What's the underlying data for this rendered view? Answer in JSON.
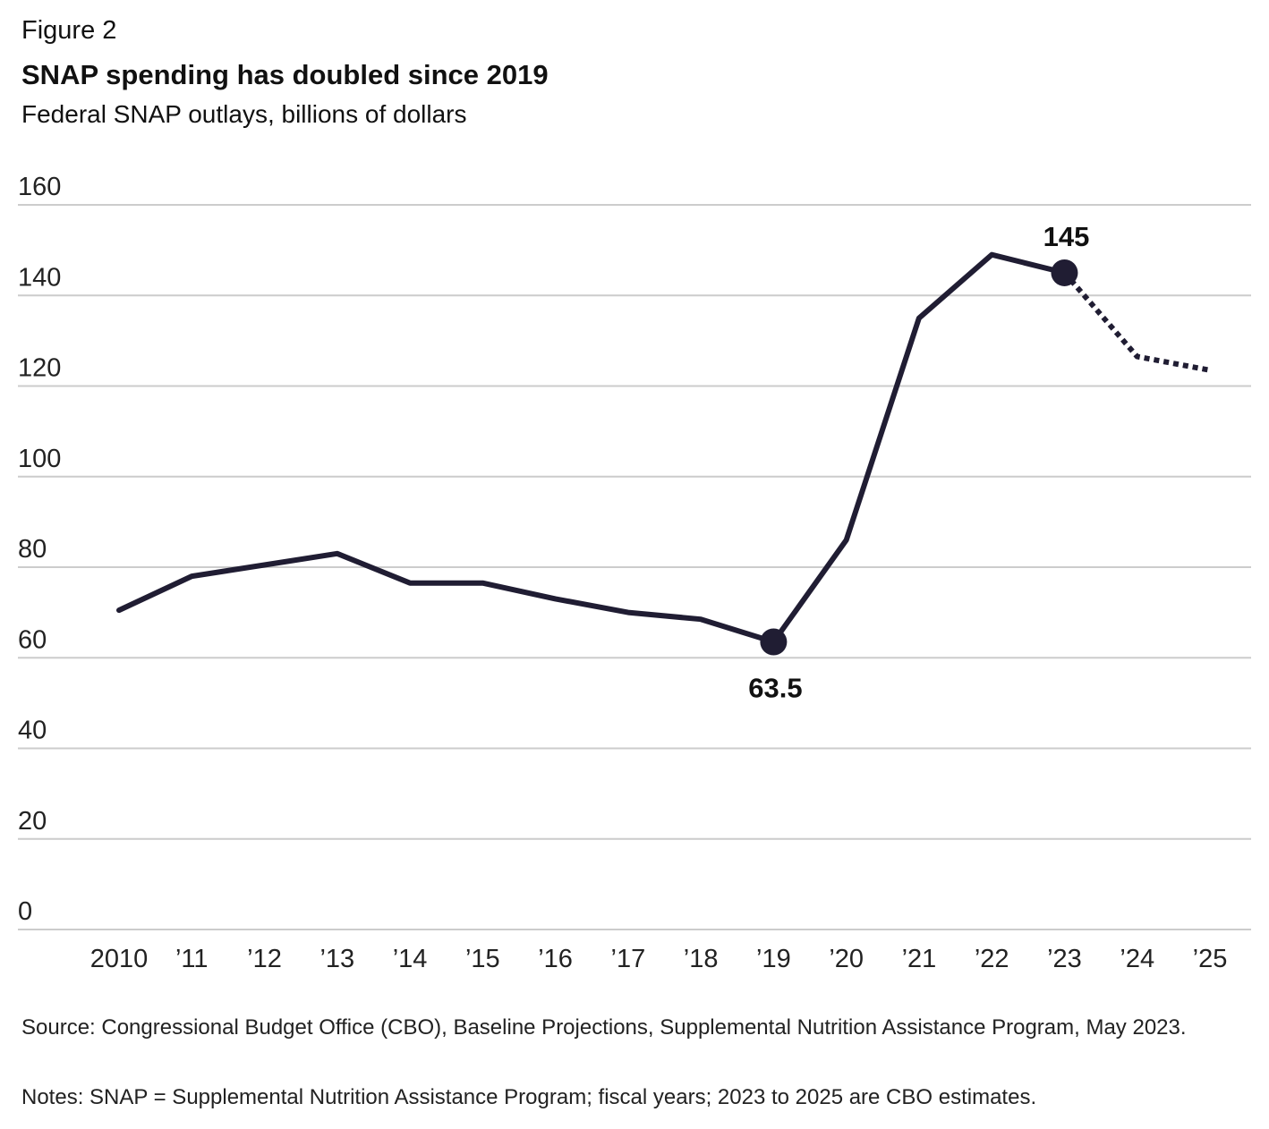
{
  "figure_label": "Figure 2",
  "footer": {
    "source": "Source: Congressional Budget Office (CBO), Baseline Projections, Supplemental Nutrition Assistance Program, May 2023.",
    "notes": "Notes: SNAP = Supplemental Nutrition Assistance Program; fiscal years; 2023 to 2025 are CBO estimates."
  },
  "colors": {
    "line": "#201d33",
    "grid": "#cccccc",
    "text": "#111111"
  },
  "chart_data": {
    "type": "line",
    "title": "SNAP spending has doubled since 2019",
    "subtitle": "Federal SNAP outlays, billions of dollars",
    "xlabel": "",
    "ylabel": "",
    "ylim": [
      0,
      160
    ],
    "yticks": [
      0,
      20,
      40,
      60,
      80,
      100,
      120,
      140,
      160
    ],
    "grid": true,
    "legend": "none",
    "x_tick_labels": [
      "2010",
      "’11",
      "’12",
      "’13",
      "’14",
      "’15",
      "’16",
      "’17",
      "’18",
      "’19",
      "’20",
      "’21",
      "’22",
      "’23",
      "’24",
      "’25"
    ],
    "x": [
      2010,
      2011,
      2012,
      2013,
      2014,
      2015,
      2016,
      2017,
      2018,
      2019,
      2020,
      2021,
      2022,
      2023,
      2024,
      2025
    ],
    "series": [
      {
        "values": [
          70.5,
          78,
          80.5,
          83,
          76.5,
          76.5,
          73,
          70,
          68.5,
          63.5,
          86,
          135,
          149,
          145,
          126.5,
          123.5
        ],
        "actual_through": 2023,
        "estimated_from": 2023,
        "estimate_style": "dotted"
      }
    ],
    "annotations": [
      {
        "x": 2019,
        "y": 63.5,
        "label": "63.5",
        "position": "below",
        "marker": "dot"
      },
      {
        "x": 2023,
        "y": 145,
        "label": "145",
        "position": "above",
        "marker": "dot"
      }
    ]
  }
}
